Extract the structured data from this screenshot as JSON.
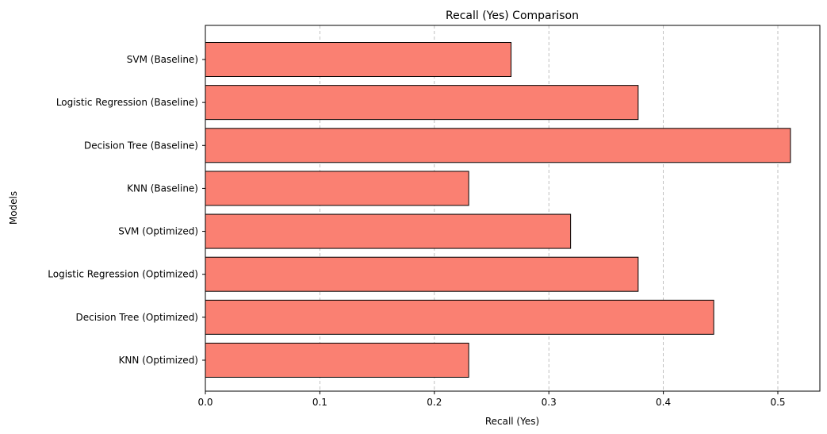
{
  "chart_data": {
    "type": "bar",
    "orientation": "horizontal",
    "title": "Recall (Yes) Comparison",
    "xlabel": "Recall (Yes)",
    "ylabel": "Models",
    "categories": [
      "SVM (Baseline)",
      "Logistic Regression (Baseline)",
      "Decision Tree (Baseline)",
      "KNN (Baseline)",
      "SVM (Optimized)",
      "Logistic Regression (Optimized)",
      "Decision Tree (Optimized)",
      "KNN (Optimized)"
    ],
    "values": [
      0.267,
      0.378,
      0.511,
      0.23,
      0.319,
      0.378,
      0.444,
      0.23
    ],
    "xlim": [
      0,
      0.536
    ],
    "xticks": [
      0.0,
      0.1,
      0.2,
      0.3,
      0.4,
      0.5
    ],
    "xtick_labels": [
      "0.0",
      "0.1",
      "0.2",
      "0.3",
      "0.4",
      "0.5"
    ],
    "grid": "x, dashed",
    "bar_color": "#fa8072",
    "edge_color": "#000000"
  }
}
